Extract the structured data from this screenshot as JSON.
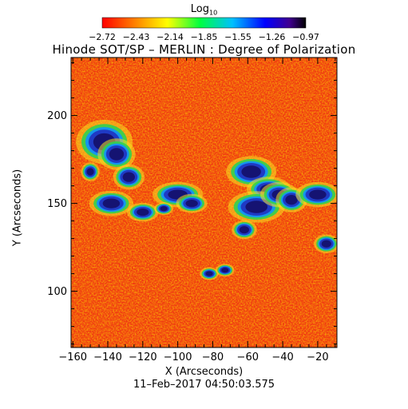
{
  "title": "Hinode SOT/SP – MERLIN : Degree of Polarization",
  "date": "11–Feb–2017 04:50:03.575",
  "colorbar": {
    "label_main": "Log",
    "label_sub": "10",
    "ticks": [
      "−2.72",
      "−2.43",
      "−2.14",
      "−1.85",
      "−1.55",
      "−1.26",
      "−0.97"
    ],
    "range": [
      -2.72,
      -0.97
    ],
    "colormap": "rainbow"
  },
  "xaxis": {
    "label": "X (Arcseconds)",
    "range": [
      -161,
      -9
    ],
    "ticks": [
      "−160",
      "−140",
      "−120",
      "−100",
      "−80",
      "−60",
      "−40",
      "−20"
    ],
    "tick_values": [
      -160,
      -140,
      -120,
      -100,
      -80,
      -60,
      -40,
      -20
    ]
  },
  "yaxis": {
    "label": "Y (Arcseconds)",
    "range": [
      68,
      233
    ],
    "ticks": [
      "100",
      "150",
      "200"
    ],
    "tick_values": [
      100,
      150,
      200
    ]
  },
  "colors": {
    "background": "#ffffff",
    "axes": "#000000",
    "high_polarization": "#141068",
    "low_polarization": "#f03010"
  }
}
